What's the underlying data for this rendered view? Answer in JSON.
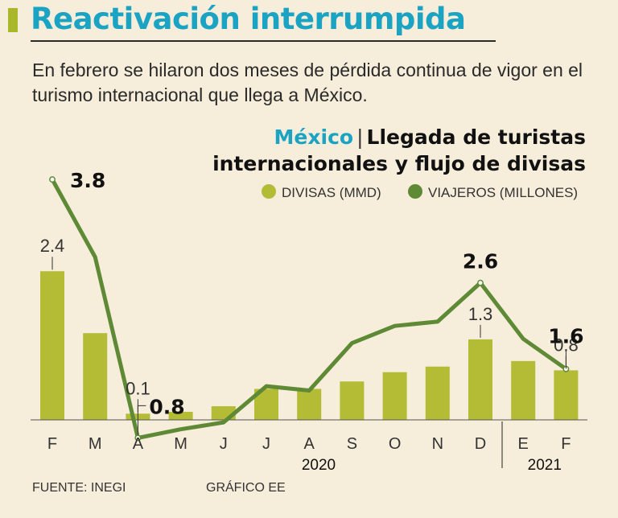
{
  "header": {
    "title": "Reactivación interrumpida",
    "subtitle": "En febrero se hilaron dos meses de pérdida continua de vigor en el turismo internacional que llega a México."
  },
  "chart_heading": {
    "country": "México",
    "separator": "|",
    "line1": "Llegada de turistas",
    "line2": "internacionales y flujo de divisas"
  },
  "footer": {
    "source": "FUENTE: INEGI",
    "credit": "GRÁFICO EE"
  },
  "colors": {
    "bars": "#b3bc34",
    "line": "#5e8a35",
    "accent": "#1aa3c2",
    "background": "#f6eddb"
  },
  "chart_data": {
    "type": "bar",
    "categories": [
      "F",
      "M",
      "A",
      "M",
      "J",
      "J",
      "A",
      "S",
      "O",
      "N",
      "D",
      "E",
      "F"
    ],
    "year_groups": [
      {
        "label": "2020",
        "start": 0,
        "end": 10
      },
      {
        "label": "2021",
        "start": 11,
        "end": 12
      }
    ],
    "series": [
      {
        "name": "DIVISAS (MMD)",
        "type": "bar",
        "values": [
          2.4,
          1.4,
          0.1,
          0.13,
          0.22,
          0.5,
          0.5,
          0.62,
          0.77,
          0.86,
          1.3,
          0.95,
          0.8
        ],
        "labels": [
          {
            "index": 0,
            "text": "2.4"
          },
          {
            "index": 2,
            "text": "0.1"
          },
          {
            "index": 10,
            "text": "1.3"
          },
          {
            "index": 12,
            "text": "0.8"
          }
        ]
      },
      {
        "name": "VIAJEROS (MILLONES)",
        "type": "line",
        "values": [
          3.8,
          2.9,
          0.8,
          0.9,
          0.98,
          1.4,
          1.35,
          1.9,
          2.1,
          2.15,
          2.6,
          1.95,
          1.6
        ],
        "labels": [
          {
            "index": 0,
            "text": "3.8"
          },
          {
            "index": 2,
            "text": "0.8"
          },
          {
            "index": 10,
            "text": "2.6"
          },
          {
            "index": 12,
            "text": "1.6"
          }
        ]
      }
    ],
    "legend_position": "top-right",
    "grid": false
  }
}
